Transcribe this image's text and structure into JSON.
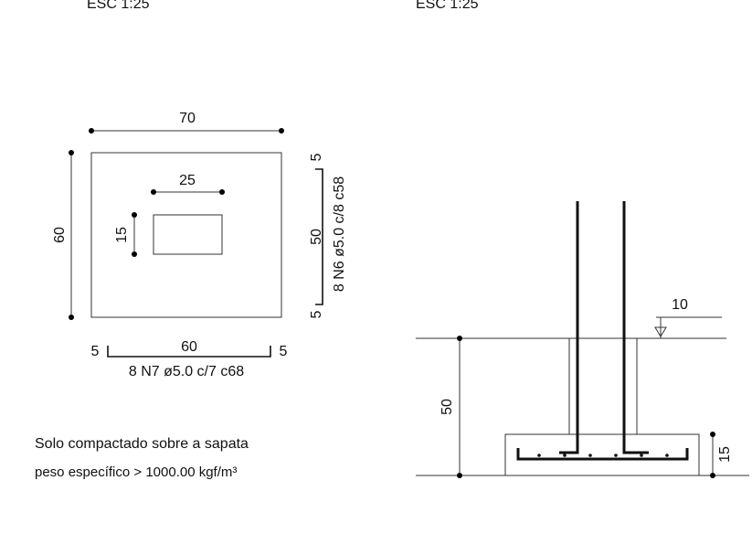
{
  "plan": {
    "scale": "ESC 1:25",
    "width": "70",
    "height": "60",
    "column_width": "25",
    "column_depth": "15",
    "rebar_n6": {
      "hook_top": "5",
      "length": "50",
      "hook_bottom": "5",
      "label": "8 N6 ø5.0 c/8  c58"
    },
    "rebar_n7": {
      "hook_left": "5",
      "length": "60",
      "hook_right": "5",
      "label": "8 N7 ø5.0 c/7  c68"
    },
    "note": [
      "Solo compactado sobre a sapata",
      "peso específico > 1000.00 kgf/m³"
    ]
  },
  "section": {
    "scale": "ESC 1:25",
    "level": "10",
    "height": "50",
    "base_height": "15"
  }
}
